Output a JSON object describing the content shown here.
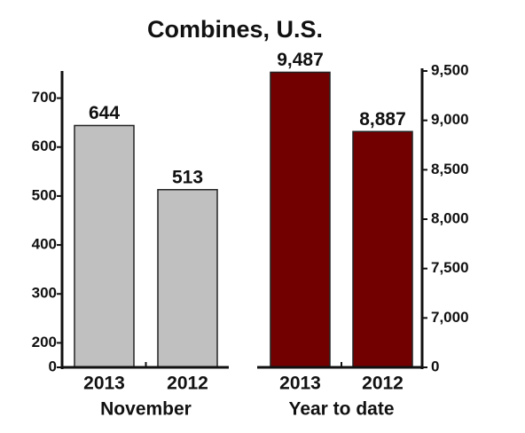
{
  "title": "Combines, U.S.",
  "chart_data": [
    {
      "type": "bar",
      "xlabel": "November",
      "categories": [
        "2013",
        "2012"
      ],
      "values": [
        644,
        513
      ],
      "color": "#c0c0c0",
      "ylim": [
        0,
        750
      ],
      "ybreak": [
        0,
        150
      ],
      "yticks": [
        0,
        200,
        300,
        400,
        500,
        600,
        700
      ],
      "axis_side": "left"
    },
    {
      "type": "bar",
      "xlabel": "Year to date",
      "categories": [
        "2013",
        "2012"
      ],
      "values": [
        9487,
        8887
      ],
      "value_labels": [
        "9,487",
        "8,887"
      ],
      "color": "#730000",
      "ylim": [
        0,
        9500
      ],
      "ybreak": [
        0,
        6500
      ],
      "yticks": [
        0,
        {
          "value": 7000,
          "label": "7,000"
        },
        {
          "value": 7500,
          "label": "7,500"
        },
        {
          "value": 8000,
          "label": "8,000"
        },
        {
          "value": 8500,
          "label": "8,500"
        },
        {
          "value": 9000,
          "label": "9,000"
        },
        {
          "value": 9500,
          "label": "9,500"
        }
      ],
      "axis_side": "right"
    }
  ]
}
